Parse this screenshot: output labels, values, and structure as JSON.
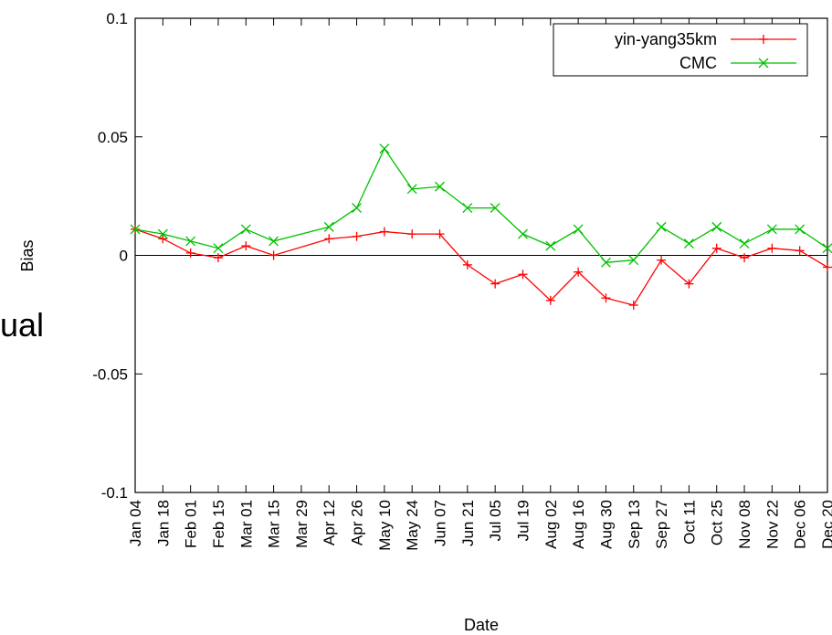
{
  "side_text": "ual",
  "chart_data": {
    "type": "line",
    "title": "",
    "xlabel": "Date",
    "ylabel": "Bias",
    "ylim": [
      -0.1,
      0.1
    ],
    "yticks": [
      "0.1",
      "0.05",
      "0",
      "-0.05",
      "-0.1"
    ],
    "ytick_values": [
      0.1,
      0.05,
      0,
      -0.05,
      -0.1
    ],
    "zero_line": true,
    "grid": false,
    "legend_position": "top-right",
    "categories": [
      "Jan 04",
      "Jan 18",
      "Feb 01",
      "Feb 15",
      "Mar 01",
      "Mar 15",
      "Mar 29",
      "Apr 12",
      "Apr 26",
      "May 10",
      "May 24",
      "Jun 07",
      "Jun 21",
      "Jul 05",
      "Jul 19",
      "Aug 02",
      "Aug 16",
      "Aug 30",
      "Sep 13",
      "Sep 27",
      "Oct 11",
      "Oct 25",
      "Nov 08",
      "Nov 22",
      "Dec 06",
      "Dec 20"
    ],
    "series": [
      {
        "name": "yin-yang35km",
        "color": "#ff0000",
        "marker": "plus",
        "points": [
          [
            "Jan 04",
            0.011
          ],
          [
            "Jan 18",
            0.007
          ],
          [
            "Feb 01",
            0.001
          ],
          [
            "Feb 15",
            -0.001
          ],
          [
            "Mar 01",
            0.004
          ],
          [
            "Mar 15",
            0.0
          ],
          [
            "Apr 12",
            0.007
          ],
          [
            "Apr 26",
            0.008
          ],
          [
            "May 10",
            0.01
          ],
          [
            "May 24",
            0.009
          ],
          [
            "Jun 07",
            0.009
          ],
          [
            "Jun 21",
            -0.004
          ],
          [
            "Jul 05",
            -0.012
          ],
          [
            "Jul 19",
            -0.008
          ],
          [
            "Aug 02",
            -0.019
          ],
          [
            "Aug 16",
            -0.007
          ],
          [
            "Aug 30",
            -0.018
          ],
          [
            "Sep 13",
            -0.021
          ],
          [
            "Sep 27",
            -0.002
          ],
          [
            "Oct 11",
            -0.012
          ],
          [
            "Oct 25",
            0.003
          ],
          [
            "Nov 08",
            -0.001
          ],
          [
            "Nov 22",
            0.003
          ],
          [
            "Dec 06",
            0.002
          ],
          [
            "Dec 20",
            -0.005
          ]
        ]
      },
      {
        "name": "CMC",
        "color": "#00c000",
        "marker": "cross",
        "points": [
          [
            "Jan 04",
            0.011
          ],
          [
            "Jan 18",
            0.009
          ],
          [
            "Feb 01",
            0.006
          ],
          [
            "Feb 15",
            0.003
          ],
          [
            "Mar 01",
            0.011
          ],
          [
            "Mar 15",
            0.006
          ],
          [
            "Apr 12",
            0.012
          ],
          [
            "Apr 26",
            0.02
          ],
          [
            "May 10",
            0.045
          ],
          [
            "May 24",
            0.028
          ],
          [
            "Jun 07",
            0.029
          ],
          [
            "Jun 21",
            0.02
          ],
          [
            "Jul 05",
            0.02
          ],
          [
            "Jul 19",
            0.009
          ],
          [
            "Aug 02",
            0.004
          ],
          [
            "Aug 16",
            0.011
          ],
          [
            "Aug 30",
            -0.003
          ],
          [
            "Sep 13",
            -0.002
          ],
          [
            "Sep 27",
            0.012
          ],
          [
            "Oct 11",
            0.005
          ],
          [
            "Oct 25",
            0.012
          ],
          [
            "Nov 08",
            0.005
          ],
          [
            "Nov 22",
            0.011
          ],
          [
            "Dec 06",
            0.011
          ],
          [
            "Dec 20",
            0.003
          ]
        ]
      }
    ]
  }
}
